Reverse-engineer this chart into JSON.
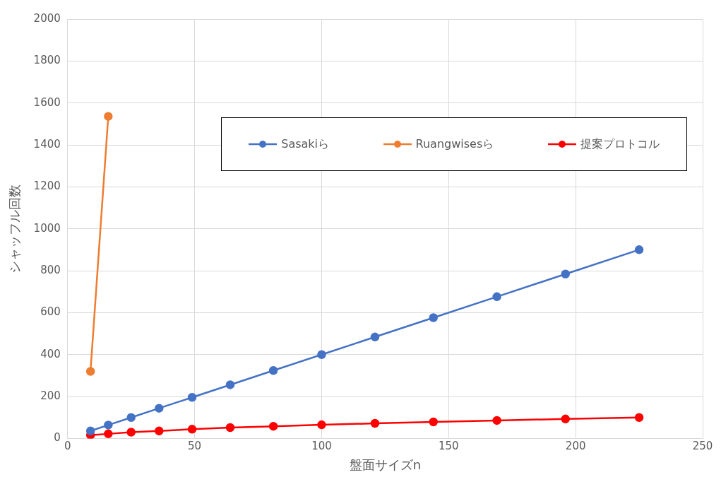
{
  "chart_data": {
    "type": "line",
    "xlabel": "盤面サイズn",
    "ylabel": "シャッフル回数",
    "x": [
      9,
      16,
      25,
      36,
      49,
      64,
      81,
      100,
      121,
      144,
      169,
      196,
      225
    ],
    "series": [
      {
        "name": "Sasakiら",
        "color": "#4472c4",
        "values": [
          36,
          64,
          100,
          144,
          196,
          256,
          324,
          400,
          484,
          576,
          676,
          784,
          900
        ]
      },
      {
        "name": "Ruangwisesら",
        "color": "#ed7d31",
        "values": [
          320,
          1536,
          null,
          null,
          null,
          null,
          null,
          null,
          null,
          null,
          null,
          null,
          null
        ]
      },
      {
        "name": "提案プロトコル",
        "color": "#ff0000",
        "values": [
          16,
          22,
          30,
          36,
          44,
          52,
          58,
          65,
          72,
          79,
          86,
          93,
          100
        ]
      }
    ],
    "xlim": [
      0,
      250
    ],
    "xticks": [
      0,
      50,
      100,
      150,
      200,
      250
    ],
    "ylim": [
      0,
      2000
    ],
    "yticks": [
      0,
      200,
      400,
      600,
      800,
      1000,
      1200,
      1400,
      1600,
      1800,
      2000
    ],
    "grid": true,
    "legend": "top right",
    "marker": "circle",
    "line_style": "solid"
  }
}
